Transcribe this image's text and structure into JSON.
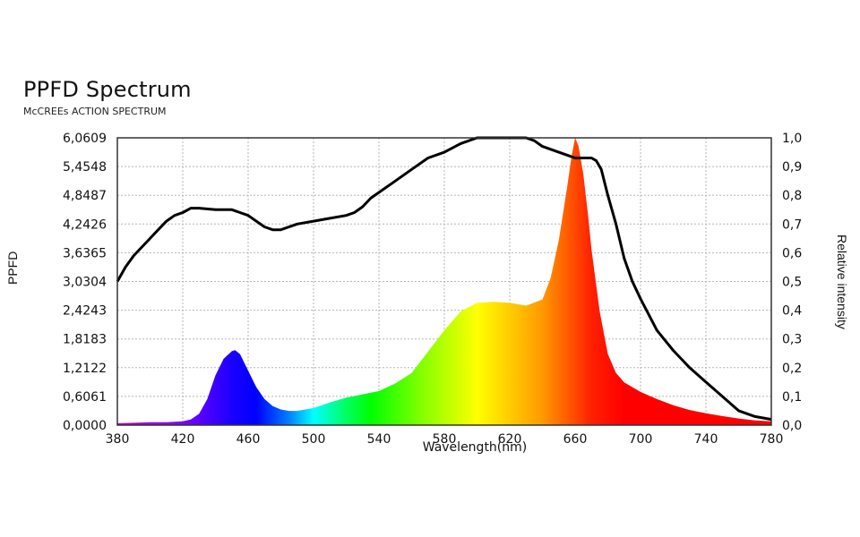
{
  "chart_data": {
    "type": "area",
    "title": "PPFD Spectrum",
    "subtitle": "McCREEs ACTION SPECTRUM",
    "xlabel": "Wavelength(nm)",
    "ylabel": "PPFD",
    "ylabel_right": "Relative intensity",
    "xlim": [
      380,
      780
    ],
    "ylim": [
      0,
      6.0609
    ],
    "ylim_right": [
      0,
      1.0
    ],
    "grid": true,
    "x_ticks": [
      "380",
      "420",
      "460",
      "500",
      "540",
      "580",
      "620",
      "660",
      "700",
      "740",
      "780"
    ],
    "y_ticks_left": [
      "0,0000",
      "0,6061",
      "1,2122",
      "1,8183",
      "2,4243",
      "3,0304",
      "3,6365",
      "4,2426",
      "4,8487",
      "5,4548",
      "6,0609"
    ],
    "y_ticks_right": [
      "0,0",
      "0,1",
      "0,2",
      "0,3",
      "0,4",
      "0,5",
      "0,6",
      "0,7",
      "0,8",
      "0,9",
      "1,0"
    ],
    "series": [
      {
        "name": "PPFD spectrum",
        "style": "rainbow-filled-area",
        "axis": "left",
        "x": [
          380,
          390,
          400,
          410,
          420,
          425,
          430,
          435,
          440,
          445,
          450,
          452,
          455,
          460,
          465,
          470,
          475,
          480,
          485,
          490,
          500,
          510,
          520,
          530,
          540,
          550,
          560,
          570,
          580,
          590,
          600,
          610,
          620,
          630,
          640,
          645,
          650,
          655,
          658,
          660,
          662,
          665,
          668,
          670,
          675,
          680,
          685,
          690,
          700,
          710,
          720,
          730,
          740,
          750,
          760,
          770,
          780
        ],
        "values": [
          0.04,
          0.05,
          0.06,
          0.06,
          0.08,
          0.12,
          0.24,
          0.55,
          1.05,
          1.4,
          1.56,
          1.58,
          1.5,
          1.15,
          0.8,
          0.55,
          0.4,
          0.33,
          0.3,
          0.3,
          0.36,
          0.48,
          0.58,
          0.65,
          0.72,
          0.88,
          1.1,
          1.55,
          2.0,
          2.4,
          2.58,
          2.6,
          2.58,
          2.52,
          2.65,
          3.1,
          3.9,
          5.0,
          5.7,
          6.06,
          5.9,
          5.3,
          4.4,
          3.7,
          2.4,
          1.5,
          1.1,
          0.9,
          0.7,
          0.55,
          0.42,
          0.32,
          0.25,
          0.19,
          0.14,
          0.1,
          0.08
        ]
      },
      {
        "name": "McCree action spectrum",
        "style": "black-line",
        "axis": "right",
        "x": [
          380,
          385,
          390,
          395,
          400,
          405,
          410,
          415,
          420,
          425,
          430,
          440,
          450,
          455,
          460,
          465,
          470,
          475,
          480,
          490,
          500,
          510,
          520,
          525,
          530,
          535,
          540,
          550,
          560,
          570,
          580,
          590,
          600,
          610,
          620,
          630,
          635,
          640,
          650,
          660,
          670,
          673,
          676,
          680,
          685,
          690,
          695,
          700,
          710,
          720,
          730,
          740,
          750,
          760,
          770,
          780
        ],
        "values": [
          0.5,
          0.55,
          0.59,
          0.62,
          0.65,
          0.68,
          0.71,
          0.73,
          0.74,
          0.755,
          0.755,
          0.75,
          0.75,
          0.74,
          0.73,
          0.71,
          0.69,
          0.68,
          0.68,
          0.7,
          0.71,
          0.72,
          0.73,
          0.74,
          0.76,
          0.79,
          0.81,
          0.85,
          0.89,
          0.93,
          0.95,
          0.98,
          1.0,
          1.0,
          1.0,
          1.0,
          0.99,
          0.97,
          0.95,
          0.93,
          0.93,
          0.92,
          0.89,
          0.8,
          0.7,
          0.58,
          0.5,
          0.44,
          0.33,
          0.26,
          0.2,
          0.15,
          0.1,
          0.05,
          0.03,
          0.02
        ]
      }
    ]
  },
  "header": {
    "title": "PPFD Spectrum",
    "subtitle": "McCREEs ACTION SPECTRUM"
  },
  "axes": {
    "xlabel": "Wavelength(nm)",
    "ylabel_left": "PPFD",
    "ylabel_right": "Relative intensity"
  },
  "colors": {
    "frame": "#333333",
    "grid": "#b5b5b5",
    "action_line": "#000000",
    "spectrum_gradient": [
      "#c000c0",
      "#7a00ff",
      "#0000ff",
      "#00ffff",
      "#00ff00",
      "#80ff00",
      "#ffff00",
      "#ff9900",
      "#ff0000"
    ]
  }
}
